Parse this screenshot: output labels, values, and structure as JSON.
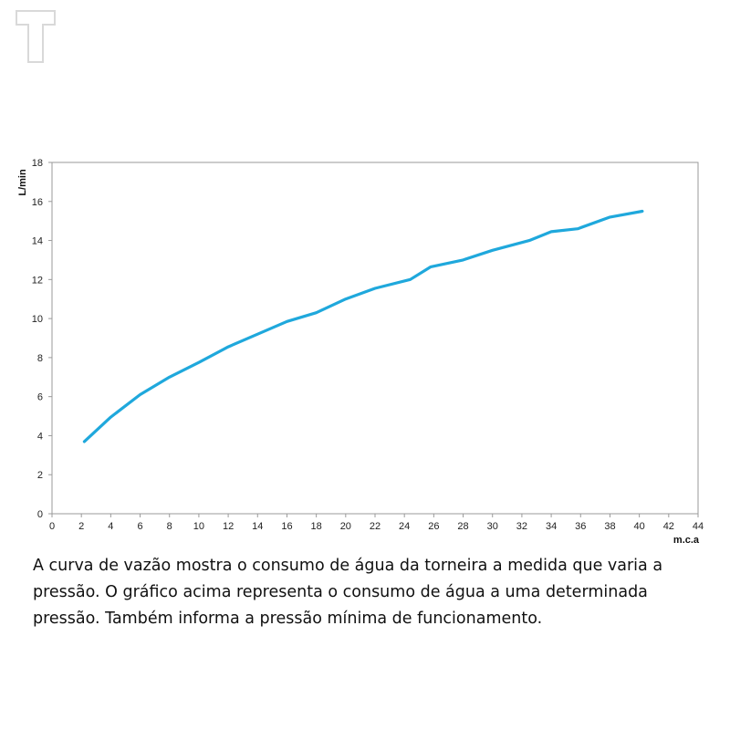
{
  "logo": {
    "icon": "t-logo-icon",
    "color": "#d9d9d9"
  },
  "chart_data": {
    "type": "line",
    "title": "",
    "xlabel": "m.c.a",
    "ylabel": "L/min",
    "xlim": [
      0,
      44
    ],
    "ylim": [
      0,
      18
    ],
    "xticks": [
      0,
      2,
      4,
      6,
      8,
      10,
      12,
      14,
      16,
      18,
      20,
      22,
      24,
      26,
      28,
      30,
      32,
      34,
      36,
      38,
      40,
      42,
      44
    ],
    "yticks": [
      0,
      2,
      4,
      6,
      8,
      10,
      12,
      14,
      16,
      18
    ],
    "grid": false,
    "line_color": "#1fa8dc",
    "series": [
      {
        "x": [
          2.2,
          4,
          6,
          8,
          10,
          12,
          14,
          16,
          18,
          20,
          22,
          24.4,
          25.8,
          28,
          30,
          32.5,
          34,
          35.8,
          38,
          40.2
        ],
        "y": [
          3.7,
          4.95,
          6.1,
          7.0,
          7.75,
          8.55,
          9.2,
          9.85,
          10.3,
          11.0,
          11.55,
          12.0,
          12.65,
          13.0,
          13.5,
          14.0,
          14.45,
          14.6,
          15.2,
          15.5
        ]
      }
    ]
  },
  "caption": "A curva de vazão mostra o consumo de água da torneira a medida que varia a pressão. O gráfico acima representa o consumo de água a uma determinada pressão. Também informa a pressão mínima de funcionamento."
}
